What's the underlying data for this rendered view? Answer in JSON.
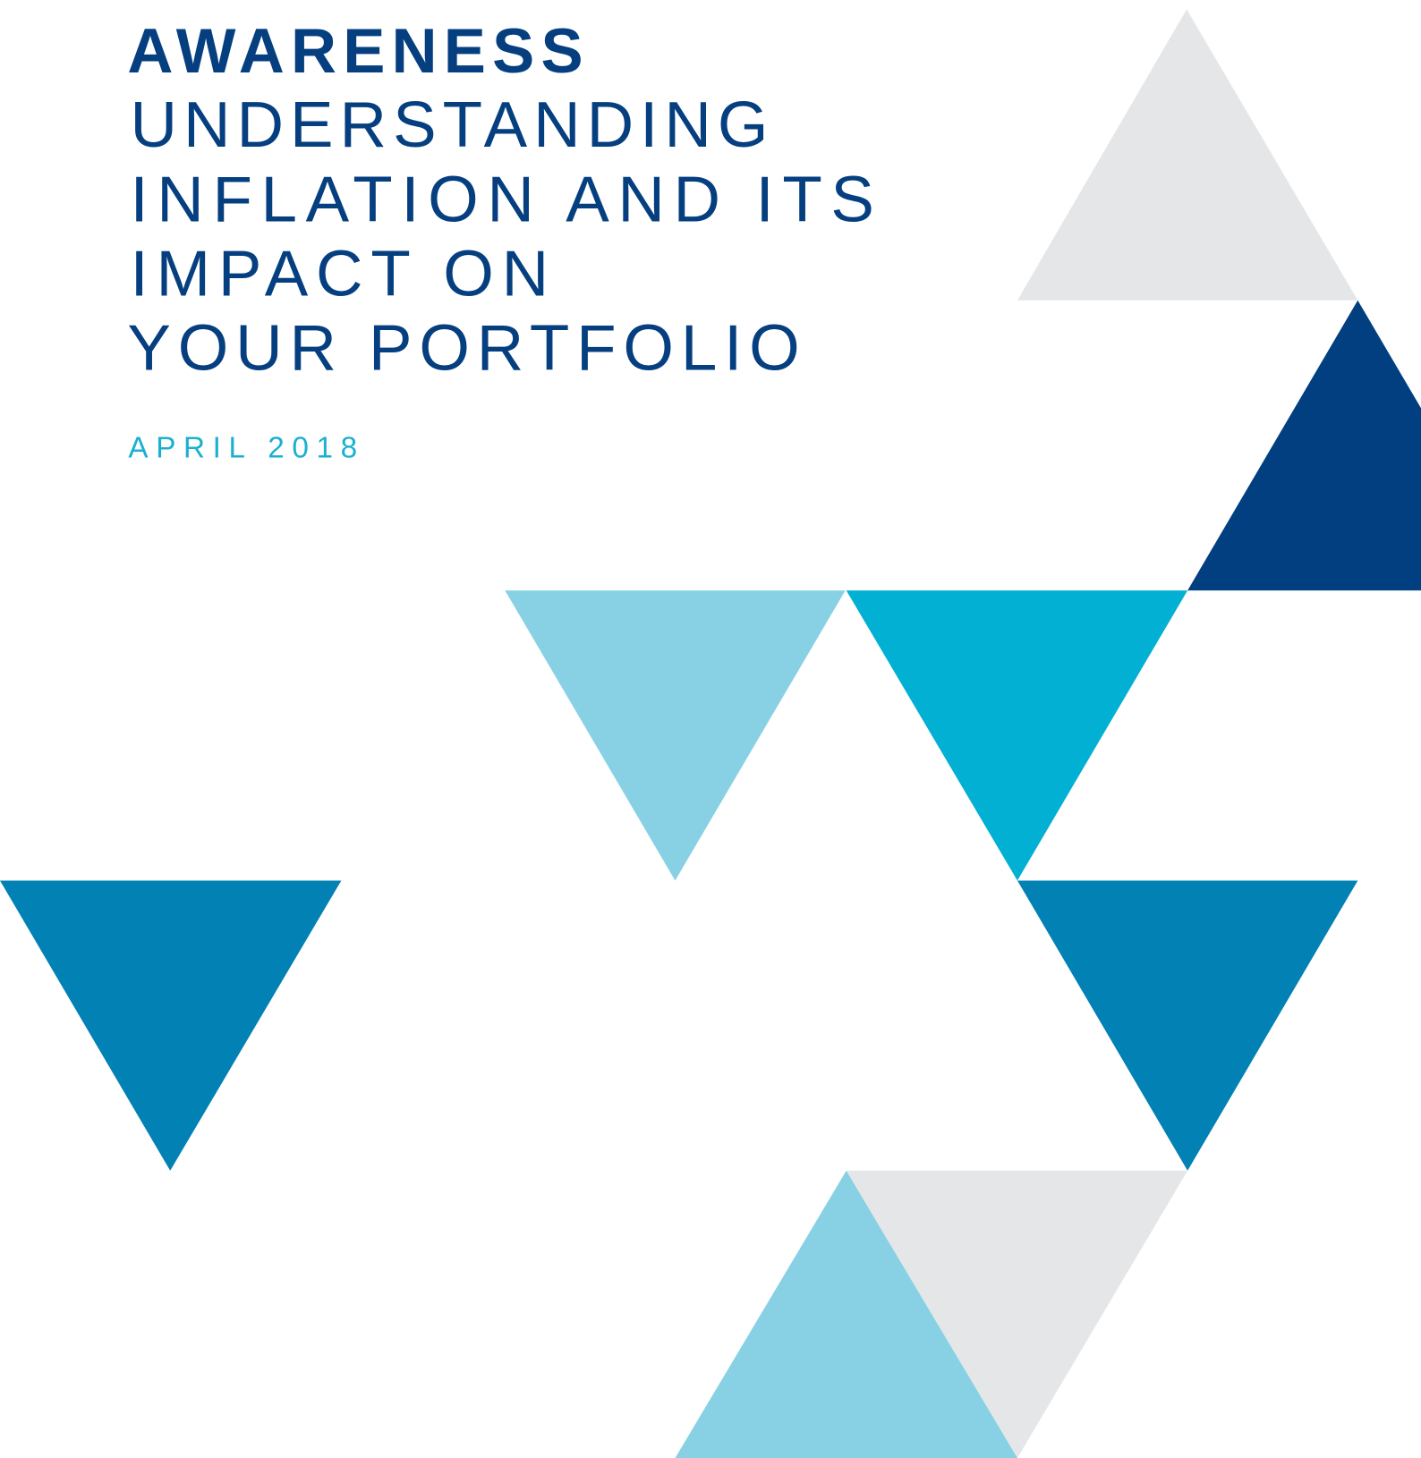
{
  "header": {
    "series": "AWARENESS",
    "title_lines": [
      "UNDERSTANDING",
      "INFLATION AND ITS",
      "IMPACT ON",
      "YOUR PORTFOLIO"
    ],
    "date": "APRIL 2018"
  }
}
